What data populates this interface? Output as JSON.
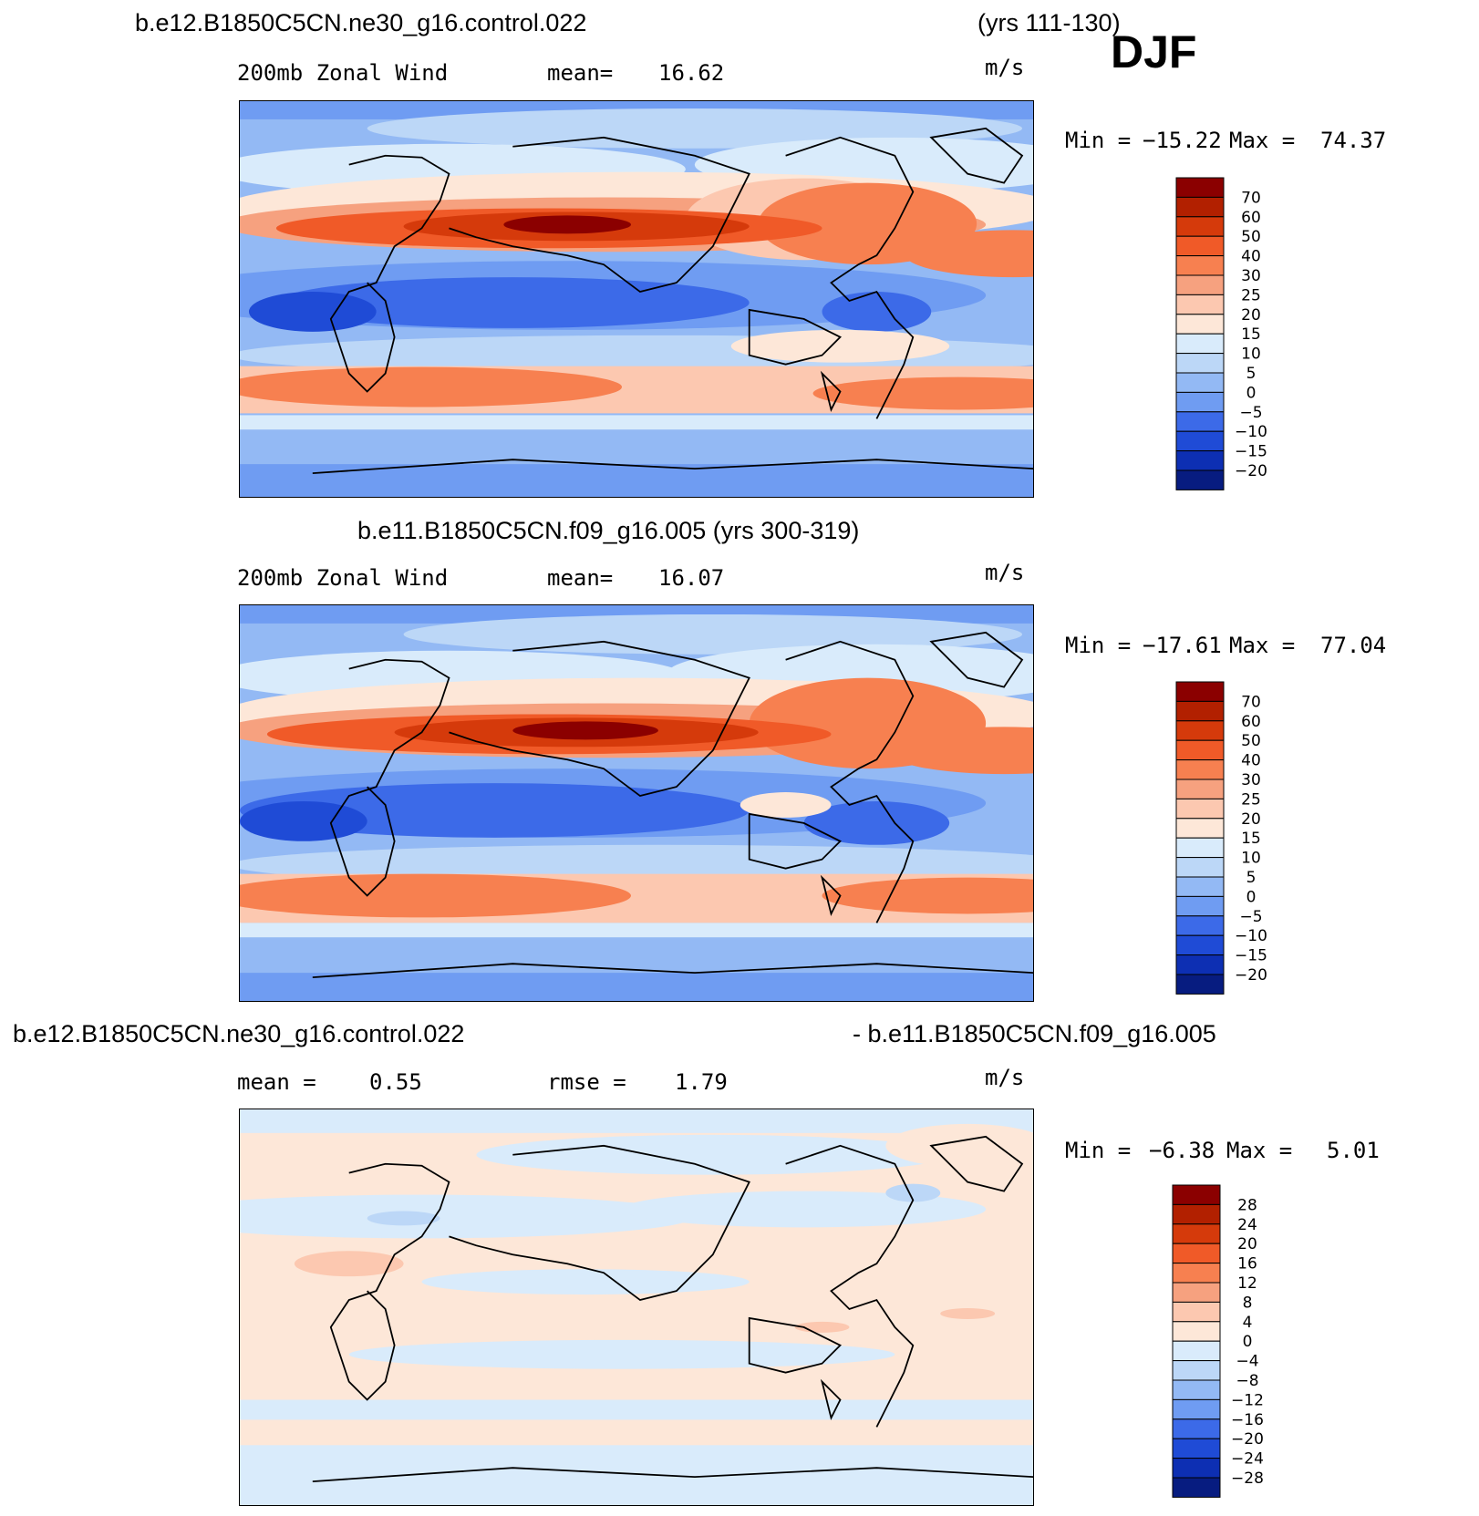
{
  "season": "DJF",
  "units": "m/s",
  "panels": [
    {
      "title_left": "b.e12.B1850C5CN.ne30_g16.control.022",
      "title_right": "(yrs 111-130)",
      "field_label": "200mb Zonal Wind",
      "stat_label": "mean=",
      "stat_value": "16.62",
      "units": "m/s",
      "min_label": "Min =",
      "min_value": "−15.22",
      "max_label": "Max =",
      "max_value": "74.37",
      "colorbar_levels": [
        "70",
        "60",
        "50",
        "40",
        "30",
        "25",
        "20",
        "15",
        "10",
        "5",
        "0",
        "−5",
        "−10",
        "−15",
        "−20"
      ]
    },
    {
      "title_center": "b.e11.B1850C5CN.f09_g16.005 (yrs 300-319)",
      "field_label": "200mb Zonal Wind",
      "stat_label": "mean=",
      "stat_value": "16.07",
      "units": "m/s",
      "min_label": "Min =",
      "min_value": "−17.61",
      "max_label": "Max =",
      "max_value": "77.04",
      "colorbar_levels": [
        "70",
        "60",
        "50",
        "40",
        "30",
        "25",
        "20",
        "15",
        "10",
        "5",
        "0",
        "−5",
        "−10",
        "−15",
        "−20"
      ]
    },
    {
      "title_left": "b.e12.B1850C5CN.ne30_g16.control.022",
      "title_right": "- b.e11.B1850C5CN.f09_g16.005",
      "mean_label": "mean =",
      "mean_value": "0.55",
      "rmse_label": "rmse =",
      "rmse_value": "1.79",
      "units": "m/s",
      "min_label": "Min =",
      "min_value": "−6.38",
      "max_label": "Max =",
      "max_value": "5.01",
      "colorbar_levels": [
        "28",
        "24",
        "20",
        "16",
        "12",
        "8",
        "4",
        "0",
        "−4",
        "−8",
        "−12",
        "−16",
        "−20",
        "−24",
        "−28"
      ]
    }
  ],
  "colors": {
    "wind_scale": [
      "#8b0000",
      "#b22000",
      "#d53a0b",
      "#f05a28",
      "#f78050",
      "#f6a17f",
      "#fcc8b0",
      "#fde7d8",
      "#d9ebfb",
      "#bcd7f7",
      "#93b9f4",
      "#6f9cf2",
      "#3c6ae8",
      "#1f4bd6",
      "#0d2fb3",
      "#071c80"
    ],
    "diff_scale": [
      "#8b0000",
      "#b22000",
      "#d53a0b",
      "#f05a28",
      "#f78050",
      "#f6a17f",
      "#fcc8b0",
      "#fde7d8",
      "#d9ebfb",
      "#bcd7f7",
      "#93b9f4",
      "#6f9cf2",
      "#3c6ae8",
      "#1f4bd6",
      "#0d2fb3",
      "#071c80"
    ]
  }
}
